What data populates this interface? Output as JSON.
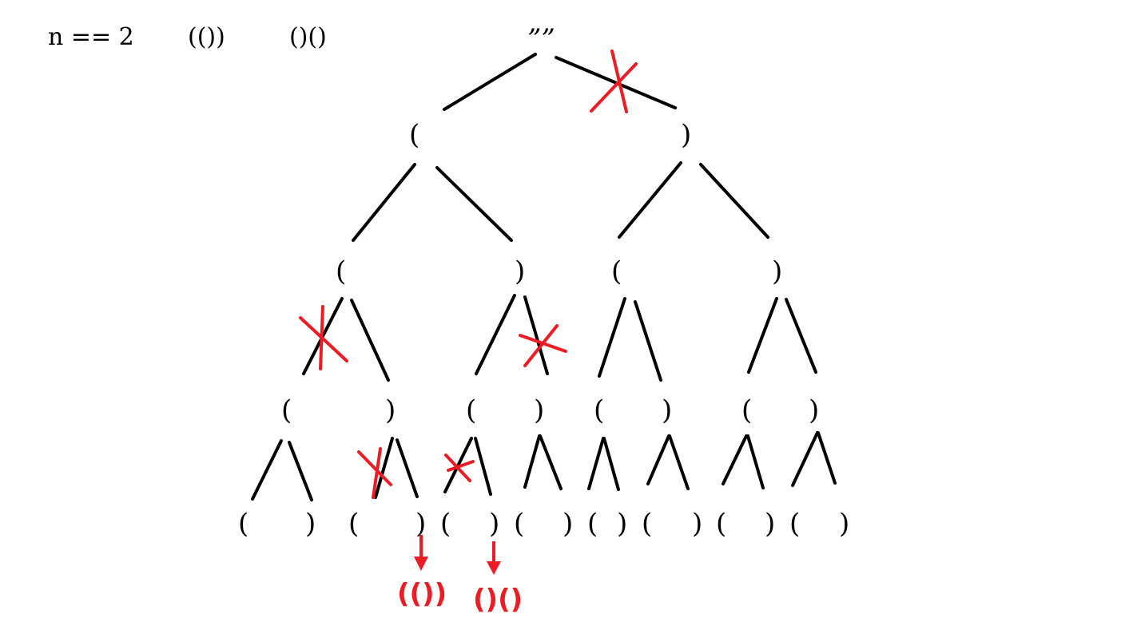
{
  "header": {
    "n_label": "n == 2",
    "combo_1": "(())",
    "combo_2": "()()"
  },
  "tree": {
    "root_label": "””",
    "level1": [
      "(",
      ")"
    ],
    "level2": [
      "(",
      ")",
      "(",
      ")"
    ],
    "level3": [
      "(",
      ")",
      "(",
      ")",
      "(",
      ")",
      "(",
      ")"
    ],
    "level4": [
      "(",
      ")",
      "(",
      ")",
      "(",
      ")",
      "(",
      ")",
      "(",
      ")",
      "(",
      ")",
      "(",
      ")",
      "(",
      ")"
    ]
  },
  "results": {
    "result_1": "(())",
    "result_2": "()()"
  },
  "colors": {
    "line": "#000000",
    "mark": "#ed1c24"
  },
  "icons": {
    "pruned_branch": "cross-mark-icon",
    "valid_result": "arrow-down-icon"
  }
}
